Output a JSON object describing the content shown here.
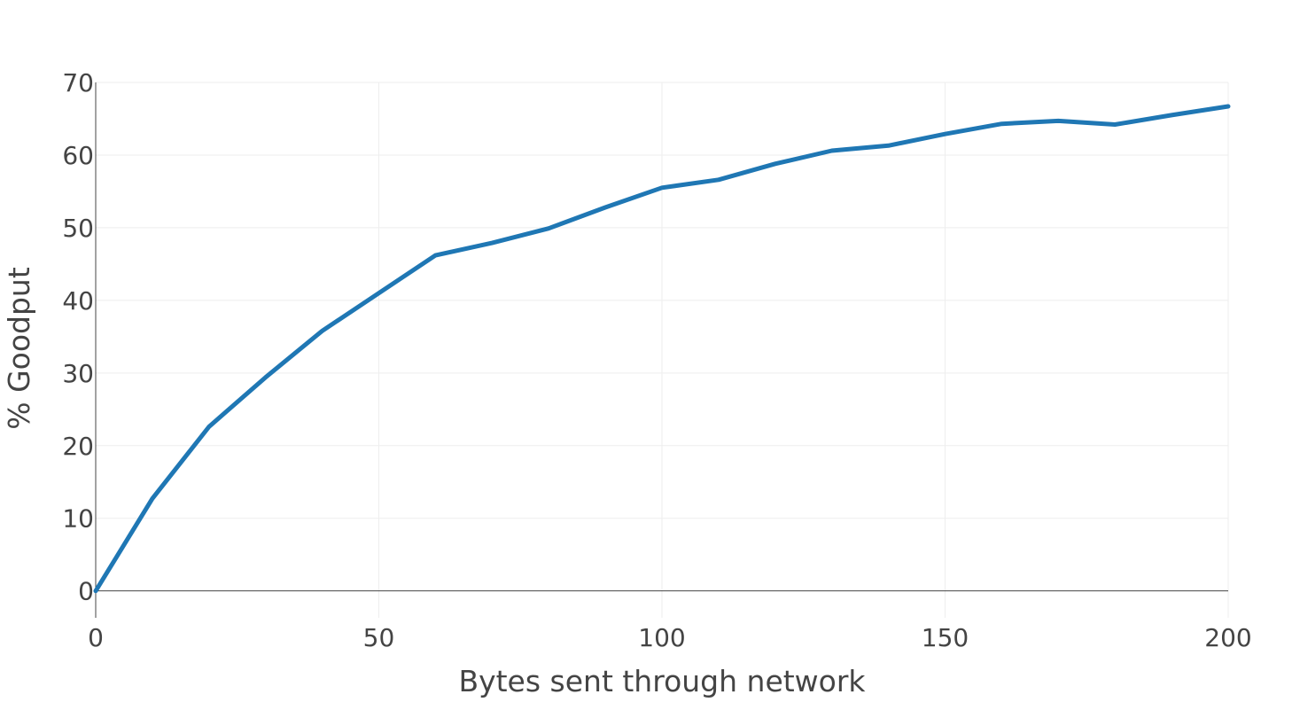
{
  "chart_data": {
    "type": "line",
    "title": "",
    "xlabel": "Bytes sent through network",
    "ylabel": "% Goodput",
    "xlim": [
      0,
      200
    ],
    "ylim": [
      -3.7,
      70
    ],
    "x_ticks": [
      0,
      50,
      100,
      150,
      200
    ],
    "y_ticks": [
      0,
      10,
      20,
      30,
      40,
      50,
      60,
      70
    ],
    "grid": true,
    "legend": "none",
    "series_color": "#1f77b4",
    "series": [
      {
        "x": [
          0,
          10,
          20,
          30,
          40,
          50,
          60,
          70,
          80,
          90,
          100,
          110,
          120,
          130,
          140,
          150,
          160,
          170,
          180,
          190,
          200
        ],
        "values": [
          0,
          12.7,
          22.6,
          29.4,
          35.8,
          41.0,
          46.2,
          47.9,
          49.9,
          52.8,
          55.5,
          56.6,
          58.8,
          60.6,
          61.3,
          62.9,
          64.3,
          64.7,
          64.2,
          65.5,
          66.7
        ]
      }
    ]
  }
}
